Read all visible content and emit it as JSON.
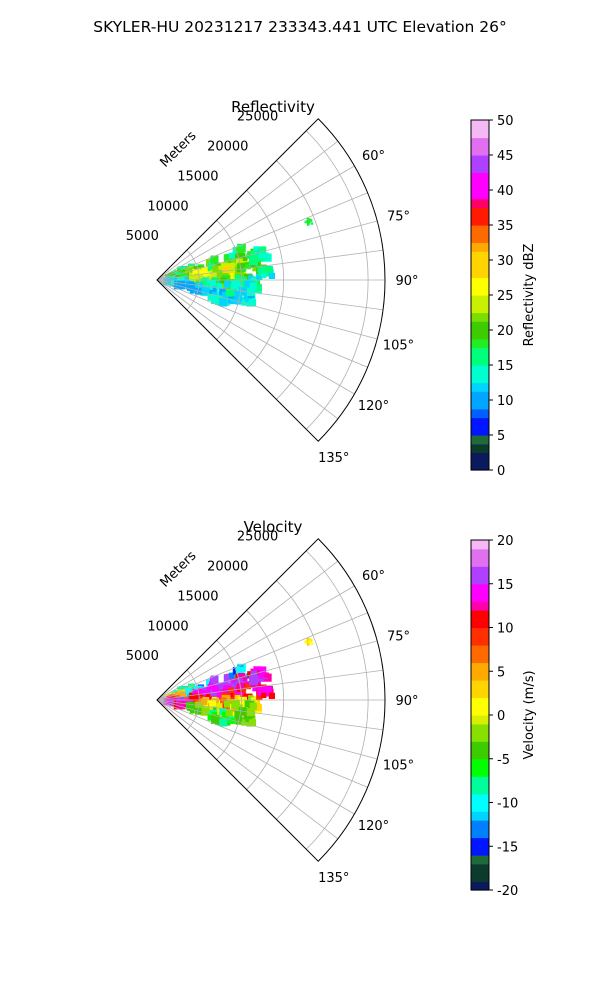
{
  "figure": {
    "suptitle": "SKYLER-HU  20231217  233343.441 UTC Elevation 26°"
  },
  "chart_data": [
    {
      "type": "heatmap",
      "projection": "polar-sector",
      "title": "Reflectivity",
      "range_label": "Meters",
      "range_max": 27000,
      "range_ticks": [
        5000,
        10000,
        15000,
        20000,
        25000
      ],
      "range_tick_labels": [
        "5000",
        "10000",
        "15000",
        "20000",
        "25000"
      ],
      "azimuth_min": 45,
      "azimuth_max": 135,
      "azimuth_ticks": [
        60,
        75,
        90,
        105,
        120,
        135
      ],
      "azimuth_tick_labels": [
        "60°",
        "75°",
        "90°",
        "105°",
        "120°",
        "135°"
      ],
      "grid": true,
      "colorbar": {
        "label": "Reflectivity dBZ",
        "min": 0,
        "max": 50,
        "ticks": [
          0,
          5,
          10,
          15,
          20,
          25,
          30,
          35,
          40,
          45,
          50
        ],
        "tick_labels": [
          "0",
          "5",
          "10",
          "15",
          "20",
          "25",
          "30",
          "35",
          "40",
          "45",
          "50"
        ],
        "stops": [
          {
            "value": 0,
            "color": "#0a1a5c"
          },
          {
            "value": 2,
            "color": "#0c3b2e"
          },
          {
            "value": 4,
            "color": "#1f6a3a"
          },
          {
            "value": 5,
            "color": "#0016ff"
          },
          {
            "value": 7,
            "color": "#0060ff"
          },
          {
            "value": 9,
            "color": "#00a6ff"
          },
          {
            "value": 11,
            "color": "#00d4ff"
          },
          {
            "value": 13,
            "color": "#00ffd0"
          },
          {
            "value": 15,
            "color": "#00ff7a"
          },
          {
            "value": 17,
            "color": "#22ee22"
          },
          {
            "value": 19,
            "color": "#3ccc00"
          },
          {
            "value": 21,
            "color": "#7cdd00"
          },
          {
            "value": 23,
            "color": "#c8f000"
          },
          {
            "value": 25,
            "color": "#ffff00"
          },
          {
            "value": 28,
            "color": "#ffd400"
          },
          {
            "value": 31,
            "color": "#ffaa00"
          },
          {
            "value": 33,
            "color": "#ff6a00"
          },
          {
            "value": 35,
            "color": "#ff1a00"
          },
          {
            "value": 37,
            "color": "#ff0066"
          },
          {
            "value": 39,
            "color": "#ff00ff"
          },
          {
            "value": 42,
            "color": "#b040ff"
          },
          {
            "value": 45,
            "color": "#e070f0"
          },
          {
            "value": 48,
            "color": "#f4b8f4"
          },
          {
            "value": 50,
            "color": "#fdeefd"
          }
        ]
      },
      "echo_cells": [
        {
          "az": 73,
          "r": 3500,
          "dr": 1400,
          "daz": 5,
          "v": 15
        },
        {
          "az": 79,
          "r": 3000,
          "dr": 1600,
          "daz": 6,
          "v": 22
        },
        {
          "az": 85,
          "r": 3200,
          "dr": 1500,
          "daz": 6,
          "v": 18
        },
        {
          "az": 92,
          "r": 3000,
          "dr": 1500,
          "daz": 6,
          "v": 14
        },
        {
          "az": 98,
          "r": 2600,
          "dr": 1500,
          "daz": 6,
          "v": 12
        },
        {
          "az": 76,
          "r": 5500,
          "dr": 1700,
          "daz": 5,
          "v": 20
        },
        {
          "az": 83,
          "r": 6000,
          "dr": 1800,
          "daz": 6,
          "v": 25
        },
        {
          "az": 90,
          "r": 6200,
          "dr": 1800,
          "daz": 6,
          "v": 23
        },
        {
          "az": 96,
          "r": 5800,
          "dr": 1600,
          "daz": 6,
          "v": 15
        },
        {
          "az": 103,
          "r": 5400,
          "dr": 1500,
          "daz": 6,
          "v": 12
        },
        {
          "az": 74,
          "r": 8000,
          "dr": 1800,
          "daz": 5,
          "v": 17
        },
        {
          "az": 81,
          "r": 8500,
          "dr": 1900,
          "daz": 6,
          "v": 22
        },
        {
          "az": 87,
          "r": 8800,
          "dr": 1900,
          "daz": 6,
          "v": 27
        },
        {
          "az": 93,
          "r": 8600,
          "dr": 1800,
          "daz": 6,
          "v": 20
        },
        {
          "az": 99,
          "r": 8200,
          "dr": 1700,
          "daz": 6,
          "v": 14
        },
        {
          "az": 105,
          "r": 7800,
          "dr": 1600,
          "daz": 5,
          "v": 13
        },
        {
          "az": 72,
          "r": 10400,
          "dr": 1500,
          "daz": 5,
          "v": 16
        },
        {
          "az": 79,
          "r": 10700,
          "dr": 1700,
          "daz": 5,
          "v": 21
        },
        {
          "az": 85,
          "r": 11000,
          "dr": 1600,
          "daz": 5,
          "v": 18
        },
        {
          "az": 91,
          "r": 10600,
          "dr": 1700,
          "daz": 5,
          "v": 15
        },
        {
          "az": 97,
          "r": 10200,
          "dr": 1600,
          "daz": 5,
          "v": 13
        },
        {
          "az": 76,
          "r": 12600,
          "dr": 1000,
          "daz": 3,
          "v": 15
        },
        {
          "az": 86,
          "r": 12800,
          "dr": 900,
          "daz": 3,
          "v": 14
        },
        {
          "az": 101,
          "r": 10600,
          "dr": 1200,
          "daz": 4,
          "v": 12
        },
        {
          "az": 69,
          "r": 19300,
          "dr": 400,
          "daz": 1.2,
          "v": 17
        }
      ]
    },
    {
      "type": "heatmap",
      "projection": "polar-sector",
      "title": "Velocity",
      "range_label": "Meters",
      "range_max": 27000,
      "range_ticks": [
        5000,
        10000,
        15000,
        20000,
        25000
      ],
      "range_tick_labels": [
        "5000",
        "10000",
        "15000",
        "20000",
        "25000"
      ],
      "azimuth_min": 45,
      "azimuth_max": 135,
      "azimuth_ticks": [
        60,
        75,
        90,
        105,
        120,
        135
      ],
      "azimuth_tick_labels": [
        "60°",
        "75°",
        "90°",
        "105°",
        "120°",
        "135°"
      ],
      "grid": true,
      "colorbar": {
        "label": "Velocity (m/s)",
        "min": -20,
        "max": 20,
        "ticks": [
          -20,
          -15,
          -10,
          -5,
          0,
          5,
          10,
          15,
          20
        ],
        "tick_labels": [
          "-20",
          "-15",
          "-10",
          "-5",
          "0",
          "5",
          "10",
          "15",
          "20"
        ],
        "stops": [
          {
            "value": -20,
            "color": "#0a1a5c"
          },
          {
            "value": -19,
            "color": "#0c3b2e"
          },
          {
            "value": -17,
            "color": "#1f6a3a"
          },
          {
            "value": -16,
            "color": "#0016ff"
          },
          {
            "value": -14,
            "color": "#0080ff"
          },
          {
            "value": -12,
            "color": "#00d4ff"
          },
          {
            "value": -11,
            "color": "#00ffff"
          },
          {
            "value": -9,
            "color": "#00ff9a"
          },
          {
            "value": -7,
            "color": "#00ff00"
          },
          {
            "value": -5,
            "color": "#3ccc00"
          },
          {
            "value": -3,
            "color": "#88e000"
          },
          {
            "value": -1,
            "color": "#d8f000"
          },
          {
            "value": 0,
            "color": "#ffff00"
          },
          {
            "value": 2,
            "color": "#ffd400"
          },
          {
            "value": 4,
            "color": "#ffaa00"
          },
          {
            "value": 6,
            "color": "#ff6a00"
          },
          {
            "value": 8,
            "color": "#ff3000"
          },
          {
            "value": 10,
            "color": "#ff0000"
          },
          {
            "value": 12,
            "color": "#ff00aa"
          },
          {
            "value": 13,
            "color": "#ff00ff"
          },
          {
            "value": 15,
            "color": "#b040ff"
          },
          {
            "value": 17,
            "color": "#e070f0"
          },
          {
            "value": 19,
            "color": "#f4b8f4"
          },
          {
            "value": 20,
            "color": "#fdeefd"
          }
        ]
      },
      "echo_cells": [
        {
          "az": 73,
          "r": 3500,
          "dr": 1400,
          "daz": 5,
          "v": -9
        },
        {
          "az": 79,
          "r": 3000,
          "dr": 1600,
          "daz": 6,
          "v": 2
        },
        {
          "az": 85,
          "r": 3200,
          "dr": 1500,
          "daz": 6,
          "v": 5
        },
        {
          "az": 92,
          "r": 3000,
          "dr": 1500,
          "daz": 6,
          "v": 10
        },
        {
          "az": 98,
          "r": 2600,
          "dr": 1500,
          "daz": 6,
          "v": 14
        },
        {
          "az": 76,
          "r": 5500,
          "dr": 1700,
          "daz": 5,
          "v": -11
        },
        {
          "az": 83,
          "r": 6000,
          "dr": 1800,
          "daz": 6,
          "v": 13
        },
        {
          "az": 90,
          "r": 6200,
          "dr": 1800,
          "daz": 6,
          "v": 9
        },
        {
          "az": 96,
          "r": 5800,
          "dr": 1600,
          "daz": 6,
          "v": 3
        },
        {
          "az": 103,
          "r": 5400,
          "dr": 1500,
          "daz": 6,
          "v": -2
        },
        {
          "az": 74,
          "r": 8000,
          "dr": 1800,
          "daz": 5,
          "v": 15
        },
        {
          "az": 81,
          "r": 8500,
          "dr": 1900,
          "daz": 6,
          "v": 14
        },
        {
          "az": 87,
          "r": 8800,
          "dr": 1900,
          "daz": 6,
          "v": 11
        },
        {
          "az": 93,
          "r": 8600,
          "dr": 1800,
          "daz": 6,
          "v": 8
        },
        {
          "az": 99,
          "r": 8200,
          "dr": 1700,
          "daz": 6,
          "v": 0
        },
        {
          "az": 105,
          "r": 7800,
          "dr": 1600,
          "daz": 5,
          "v": -6
        },
        {
          "az": 72,
          "r": 10400,
          "dr": 1500,
          "daz": 5,
          "v": -12
        },
        {
          "az": 79,
          "r": 10700,
          "dr": 1700,
          "daz": 5,
          "v": 13
        },
        {
          "az": 85,
          "r": 11000,
          "dr": 1600,
          "daz": 5,
          "v": 10
        },
        {
          "az": 91,
          "r": 10600,
          "dr": 1700,
          "daz": 5,
          "v": 1
        },
        {
          "az": 97,
          "r": 10200,
          "dr": 1600,
          "daz": 5,
          "v": -3
        },
        {
          "az": 76,
          "r": 12600,
          "dr": 1000,
          "daz": 3,
          "v": 14
        },
        {
          "az": 86,
          "r": 12800,
          "dr": 900,
          "daz": 3,
          "v": 12
        },
        {
          "az": 101,
          "r": 10600,
          "dr": 1200,
          "daz": 4,
          "v": -4
        },
        {
          "az": 69,
          "r": 19300,
          "dr": 400,
          "daz": 1.2,
          "v": 1
        }
      ]
    }
  ]
}
